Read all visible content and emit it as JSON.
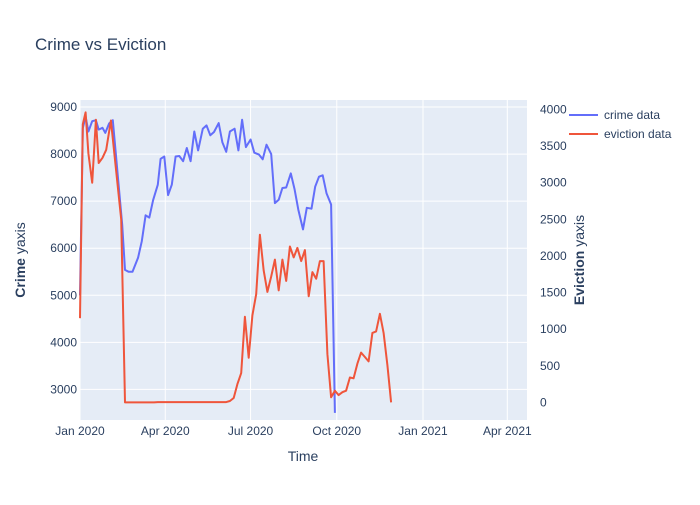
{
  "chart_data": {
    "type": "line",
    "title": "Crime vs Eviction",
    "xlabel": "Time",
    "ylabel_left": {
      "bold": "Crime",
      "rest": " yaxis"
    },
    "ylabel_right": {
      "bold": "Eviction",
      "rest": " yaxis"
    },
    "x_ticks": [
      {
        "date": "2020-01-01",
        "label": "Jan 2020"
      },
      {
        "date": "2020-04-01",
        "label": "Apr 2020"
      },
      {
        "date": "2020-07-01",
        "label": "Jul 2020"
      },
      {
        "date": "2020-10-01",
        "label": "Oct 2020"
      },
      {
        "date": "2021-01-01",
        "label": "Jan 2021"
      },
      {
        "date": "2021-04-01",
        "label": "Apr 2021"
      }
    ],
    "x_range": [
      "2020-01-01",
      "2021-04-22"
    ],
    "y_left_range": [
      2350,
      9150
    ],
    "y_left_ticks": [
      3000,
      4000,
      5000,
      6000,
      7000,
      8000,
      9000
    ],
    "y_right_range": [
      -240,
      4130
    ],
    "y_right_ticks": [
      0,
      500,
      1000,
      1500,
      2000,
      2500,
      3000,
      3500,
      4000
    ],
    "grid": true,
    "legend_position": "top-right",
    "colors": {
      "crime": "#636efa",
      "eviction": "#ef553b",
      "plot_bg": "#e5ecf6",
      "grid": "#ffffff"
    },
    "series": [
      {
        "name": "crime data",
        "axis": "left",
        "points": [
          [
            "2020-01-01",
            5000
          ],
          [
            "2020-01-04",
            8550
          ],
          [
            "2020-01-07",
            8800
          ],
          [
            "2020-01-10",
            8480
          ],
          [
            "2020-01-14",
            8700
          ],
          [
            "2020-01-18",
            8720
          ],
          [
            "2020-01-21",
            8520
          ],
          [
            "2020-01-25",
            8560
          ],
          [
            "2020-01-28",
            8450
          ],
          [
            "2020-02-01",
            8650
          ],
          [
            "2020-02-05",
            8720
          ],
          [
            "2020-02-15",
            6500
          ],
          [
            "2020-02-18",
            5540
          ],
          [
            "2020-02-22",
            5500
          ],
          [
            "2020-02-26",
            5500
          ],
          [
            "2020-03-03",
            5800
          ],
          [
            "2020-03-07",
            6150
          ],
          [
            "2020-03-11",
            6700
          ],
          [
            "2020-03-15",
            6650
          ],
          [
            "2020-03-19",
            7020
          ],
          [
            "2020-03-24",
            7350
          ],
          [
            "2020-03-27",
            7900
          ],
          [
            "2020-03-31",
            7950
          ],
          [
            "2020-04-04",
            7130
          ],
          [
            "2020-04-08",
            7350
          ],
          [
            "2020-04-12",
            7950
          ],
          [
            "2020-04-16",
            7960
          ],
          [
            "2020-04-20",
            7850
          ],
          [
            "2020-04-24",
            8130
          ],
          [
            "2020-04-28",
            7850
          ],
          [
            "2020-05-02",
            8480
          ],
          [
            "2020-05-06",
            8080
          ],
          [
            "2020-05-11",
            8540
          ],
          [
            "2020-05-15",
            8610
          ],
          [
            "2020-05-19",
            8400
          ],
          [
            "2020-05-23",
            8470
          ],
          [
            "2020-05-28",
            8660
          ],
          [
            "2020-06-01",
            8250
          ],
          [
            "2020-06-05",
            8050
          ],
          [
            "2020-06-09",
            8480
          ],
          [
            "2020-06-14",
            8540
          ],
          [
            "2020-06-18",
            8080
          ],
          [
            "2020-06-22",
            8730
          ],
          [
            "2020-06-26",
            8150
          ],
          [
            "2020-07-01",
            8310
          ],
          [
            "2020-07-05",
            8030
          ],
          [
            "2020-07-10",
            7990
          ],
          [
            "2020-07-14",
            7890
          ],
          [
            "2020-07-18",
            8200
          ],
          [
            "2020-07-23",
            8000
          ],
          [
            "2020-07-27",
            6960
          ],
          [
            "2020-07-31",
            7030
          ],
          [
            "2020-08-04",
            7280
          ],
          [
            "2020-08-08",
            7290
          ],
          [
            "2020-08-13",
            7590
          ],
          [
            "2020-08-17",
            7250
          ],
          [
            "2020-08-21",
            6820
          ],
          [
            "2020-08-26",
            6400
          ],
          [
            "2020-08-30",
            6860
          ],
          [
            "2020-09-04",
            6840
          ],
          [
            "2020-09-08",
            7310
          ],
          [
            "2020-09-12",
            7520
          ],
          [
            "2020-09-16",
            7550
          ],
          [
            "2020-09-20",
            7170
          ],
          [
            "2020-09-25",
            6930
          ],
          [
            "2020-09-29",
            2500
          ]
        ]
      },
      {
        "name": "eviction data",
        "axis": "right",
        "points": [
          [
            "2020-01-01",
            1150
          ],
          [
            "2020-01-04",
            3800
          ],
          [
            "2020-01-07",
            3960
          ],
          [
            "2020-01-10",
            3400
          ],
          [
            "2020-01-14",
            3000
          ],
          [
            "2020-01-18",
            3860
          ],
          [
            "2020-01-21",
            3270
          ],
          [
            "2020-01-25",
            3340
          ],
          [
            "2020-01-29",
            3450
          ],
          [
            "2020-02-03",
            3850
          ],
          [
            "2020-02-14",
            2500
          ],
          [
            "2020-02-18",
            0
          ],
          [
            "2020-03-20",
            0
          ],
          [
            "2020-03-24",
            5
          ],
          [
            "2020-06-05",
            5
          ],
          [
            "2020-06-09",
            20
          ],
          [
            "2020-06-13",
            60
          ],
          [
            "2020-06-17",
            250
          ],
          [
            "2020-06-21",
            400
          ],
          [
            "2020-06-25",
            1170
          ],
          [
            "2020-06-29",
            610
          ],
          [
            "2020-07-03",
            1190
          ],
          [
            "2020-07-07",
            1480
          ],
          [
            "2020-07-11",
            2290
          ],
          [
            "2020-07-15",
            1800
          ],
          [
            "2020-07-19",
            1510
          ],
          [
            "2020-07-23",
            1720
          ],
          [
            "2020-07-27",
            1950
          ],
          [
            "2020-07-31",
            1530
          ],
          [
            "2020-08-04",
            1950
          ],
          [
            "2020-08-08",
            1660
          ],
          [
            "2020-08-12",
            2130
          ],
          [
            "2020-08-16",
            1980
          ],
          [
            "2020-08-20",
            2110
          ],
          [
            "2020-08-24",
            1930
          ],
          [
            "2020-08-28",
            2080
          ],
          [
            "2020-09-01",
            1450
          ],
          [
            "2020-09-05",
            1780
          ],
          [
            "2020-09-09",
            1690
          ],
          [
            "2020-09-13",
            1930
          ],
          [
            "2020-09-17",
            1930
          ],
          [
            "2020-09-21",
            660
          ],
          [
            "2020-09-25",
            70
          ],
          [
            "2020-09-29",
            160
          ],
          [
            "2020-10-03",
            100
          ],
          [
            "2020-10-07",
            140
          ],
          [
            "2020-10-11",
            160
          ],
          [
            "2020-10-15",
            340
          ],
          [
            "2020-10-19",
            330
          ],
          [
            "2020-10-23",
            530
          ],
          [
            "2020-10-27",
            680
          ],
          [
            "2020-10-31",
            620
          ],
          [
            "2020-11-04",
            560
          ],
          [
            "2020-11-08",
            950
          ],
          [
            "2020-11-12",
            970
          ],
          [
            "2020-11-16",
            1210
          ],
          [
            "2020-11-20",
            950
          ],
          [
            "2020-11-24",
            510
          ],
          [
            "2020-11-28",
            0
          ]
        ]
      }
    ]
  }
}
